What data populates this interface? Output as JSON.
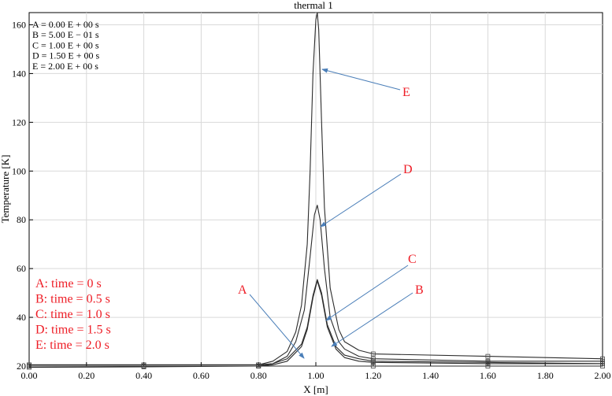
{
  "chart_data": {
    "type": "line",
    "title": "thermal 1",
    "xlabel": "X [m]",
    "ylabel": "Temperature [K]",
    "xlim": [
      0.0,
      2.0
    ],
    "ylim": [
      20,
      165
    ],
    "x_ticks": [
      "0.00",
      "0.20",
      "0.40",
      "0.60",
      "0.80",
      "1.00",
      "1.20",
      "1.40",
      "1.60",
      "1.80",
      "2.00"
    ],
    "y_ticks": [
      "20",
      "40",
      "60",
      "80",
      "100",
      "120",
      "140",
      "160"
    ],
    "legend_placement": "top-left",
    "legend": [
      "A = 0.00 E + 00 s",
      "B = 5.00 E − 01 s",
      "C = 1.00 E + 00 s",
      "D = 1.50 E + 00 s",
      "E = 2.00 E + 00 s"
    ],
    "annotation_color": "#ee1c25",
    "arrow_color": "#4a7eb8",
    "time_labels": [
      "A: time = 0 s",
      "B: time = 0.5 s",
      "C: time = 1.0 s",
      "D: time = 1.5 s",
      "E: time = 2.0 s"
    ],
    "series": [
      {
        "name": "A",
        "x": [
          0.0,
          0.4,
          0.8,
          0.9,
          0.95,
          0.98,
          1.0,
          1.02,
          1.05,
          1.1,
          1.2,
          1.6,
          2.0
        ],
        "y": [
          20,
          20,
          20,
          20,
          20,
          20,
          20,
          20,
          20,
          20,
          20,
          20,
          20
        ]
      },
      {
        "name": "B",
        "x": [
          0.0,
          0.4,
          0.8,
          0.85,
          0.9,
          0.95,
          0.97,
          0.99,
          1.005,
          1.02,
          1.04,
          1.07,
          1.1,
          1.15,
          1.2,
          1.6,
          2.0
        ],
        "y": [
          19.5,
          19.7,
          20,
          20.5,
          22,
          28,
          35,
          48,
          55,
          49,
          36,
          27,
          23.5,
          22,
          21.5,
          21,
          21
        ]
      },
      {
        "name": "C",
        "x": [
          0.0,
          0.4,
          0.8,
          0.85,
          0.9,
          0.95,
          0.97,
          0.99,
          1.005,
          1.02,
          1.04,
          1.07,
          1.1,
          1.15,
          1.2,
          1.6,
          2.0
        ],
        "y": [
          20.5,
          20.5,
          20.5,
          21,
          23,
          29,
          36,
          49,
          55.5,
          50,
          37,
          28,
          24.5,
          23,
          22,
          21.5,
          21
        ]
      },
      {
        "name": "D",
        "x": [
          0.0,
          0.4,
          0.8,
          0.85,
          0.9,
          0.93,
          0.96,
          0.98,
          0.995,
          1.005,
          1.015,
          1.03,
          1.05,
          1.08,
          1.1,
          1.15,
          1.2,
          1.6,
          2.0
        ],
        "y": [
          20,
          20,
          20,
          21,
          24,
          30,
          43,
          65,
          82,
          86,
          80,
          60,
          40,
          30,
          27,
          24,
          23,
          22,
          22
        ]
      },
      {
        "name": "E",
        "x": [
          0.0,
          0.4,
          0.8,
          0.85,
          0.9,
          0.93,
          0.95,
          0.97,
          0.98,
          0.99,
          1.0,
          1.005,
          1.01,
          1.02,
          1.03,
          1.05,
          1.08,
          1.1,
          1.15,
          1.2,
          1.6,
          2.0
        ],
        "y": [
          20.5,
          20.5,
          20.5,
          22,
          26,
          34,
          45,
          70,
          100,
          140,
          162,
          165,
          158,
          120,
          85,
          52,
          35,
          30,
          26.5,
          25,
          24,
          23
        ]
      }
    ]
  }
}
